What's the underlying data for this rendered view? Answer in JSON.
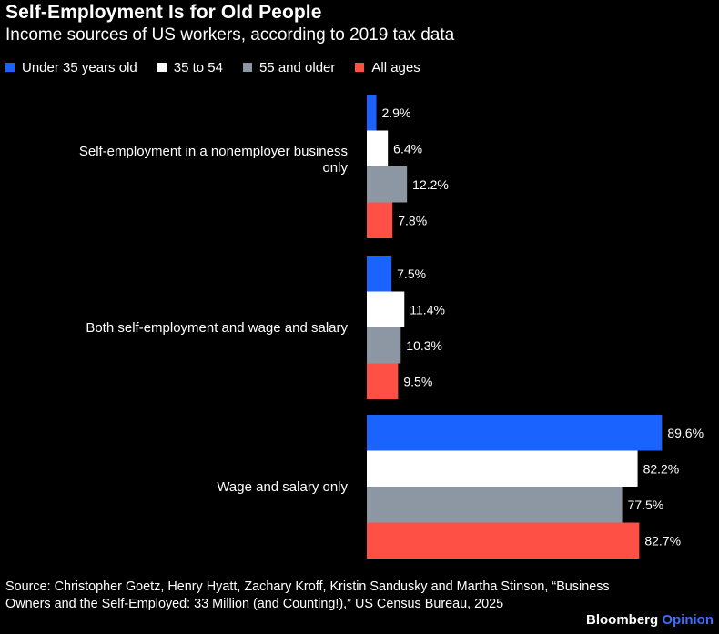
{
  "header": {
    "title": "Self-Employment Is for Old People",
    "subtitle": "Income sources of US workers, according to 2019 tax data"
  },
  "legend": [
    {
      "label": "Under 35 years old",
      "color": "#1a63ff"
    },
    {
      "label": "35 to 54",
      "color": "#ffffff"
    },
    {
      "label": "55 and older",
      "color": "#8d97a3"
    },
    {
      "label": "All ages",
      "color": "#ff5046"
    }
  ],
  "chart_data": {
    "type": "bar",
    "orientation": "horizontal",
    "categories": [
      [
        "Self-employment in a nonemployer business",
        "only"
      ],
      [
        "Both self-employment and wage and salary"
      ],
      [
        "Wage and salary only"
      ]
    ],
    "series": [
      {
        "name": "Under 35 years old",
        "color": "#1a63ff",
        "values": [
          2.9,
          7.5,
          89.6
        ],
        "labels": [
          "2.9%",
          "7.5%",
          "89.6%"
        ]
      },
      {
        "name": "35 to 54",
        "color": "#ffffff",
        "values": [
          6.4,
          11.4,
          82.2
        ],
        "labels": [
          "6.4%",
          "11.4%",
          "82.2%"
        ]
      },
      {
        "name": "55 and older",
        "color": "#8d97a3",
        "values": [
          12.2,
          10.3,
          77.5
        ],
        "labels": [
          "12.2%",
          "10.3%",
          "77.5%"
        ]
      },
      {
        "name": "All ages",
        "color": "#ff5046",
        "values": [
          7.8,
          9.5,
          82.7
        ],
        "labels": [
          "7.8%",
          "9.5%",
          "82.7%"
        ]
      }
    ],
    "xlim": [
      0,
      100
    ],
    "grid": false,
    "legend_position": "top-left"
  },
  "footer": {
    "source_line1": "Source: Christopher Goetz, Henry Hyatt, Zachary Kroff, Kristin Sandusky and Martha Stinson, “Business",
    "source_line2": "Owners and the Self-Employed: 33 Million (and Counting!),” US Census Bureau, 2025",
    "brand_name": "Bloomberg",
    "brand_suffix": "Opinion"
  }
}
